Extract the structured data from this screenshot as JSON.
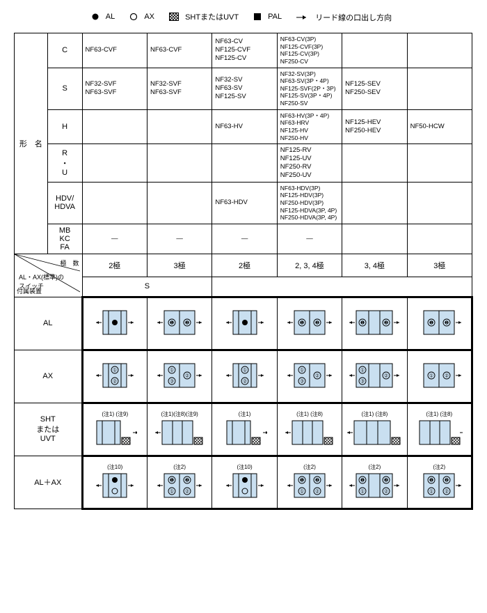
{
  "legend": {
    "al": "AL",
    "ax": "AX",
    "sht_uvt": "SHTまたはUVT",
    "pal": "PAL",
    "lead": "リード線の口出し方向"
  },
  "top_header": {
    "model_name": "形　名"
  },
  "type_rows": {
    "C": {
      "label": "C",
      "cols": [
        "NF63-CVF",
        "NF63-CVF",
        "NF63-CV\nNF125-CVF\nNF125-CV",
        "NF63-CV(3P)\nNF125-CVF(3P)\nNF125-CV(3P)\nNF250-CV",
        "",
        ""
      ]
    },
    "S": {
      "label": "S",
      "cols": [
        "NF32-SVF\nNF63-SVF",
        "NF32-SVF\nNF63-SVF",
        "NF32-SV\nNF63-SV\nNF125-SV",
        "NF32-SV(3P)\nNF63-SV(3P・4P)\nNF125-SVF(2P・3P)\nNF125-SV(3P・4P)\nNF250-SV",
        "NF125-SEV\nNF250-SEV",
        ""
      ]
    },
    "H": {
      "label": "H",
      "cols": [
        "",
        "",
        "NF63-HV",
        "NF63-HV(3P・4P)\nNF63-HRV\nNF125-HV\nNF250-HV",
        "NF125-HEV\nNF250-HEV",
        "NF50-HCW"
      ]
    },
    "RU": {
      "label": "R\n・\nU",
      "cols": [
        "",
        "",
        "",
        "NF125-RV\nNF125-UV\nNF250-RV\nNF250-UV",
        "",
        ""
      ]
    },
    "HDV": {
      "label": "HDV/\nHDVA",
      "cols": [
        "",
        "",
        "NF63-HDV",
        "NF63-HDV(3P)\nNF125-HDV(3P)\nNF250-HDV(3P)\nNF125-HDVA(3P, 4P)\nNF250-HDVA(3P, 4P)",
        "",
        ""
      ]
    },
    "MB": {
      "label": "MB\nKC\nFA",
      "cols": [
        "—",
        "—",
        "—",
        "—",
        "",
        ""
      ]
    }
  },
  "pole_row": {
    "cols": [
      "2極",
      "3極",
      "2極",
      "2, 3, 4極",
      "3, 4極",
      "3極"
    ]
  },
  "switch_row": {
    "value": "S"
  },
  "diag_headers": {
    "pole": "極　数",
    "switch": "AL・AX(標準)の\nスイッチ",
    "attach": "付属装置"
  },
  "device_rows": {
    "AL": {
      "label": "AL"
    },
    "AX": {
      "label": "AX"
    },
    "SHT": {
      "label": "SHT\nまたは\nUVT"
    },
    "ALAX": {
      "label": "AL＋AX"
    }
  },
  "notes": {
    "n1": "(注1)",
    "n2": "(注2)",
    "n8": "(注8)",
    "n9": "(注9)",
    "n10": "(注10)",
    "n1_9": "(注1) (注9)",
    "n1_8_9": "(注1)(注8)(注9)",
    "n1_8": "(注1) (注8)"
  },
  "colors": {
    "module_fill": "#c9dff0",
    "module_stroke": "#000000",
    "hatch": "#000000"
  }
}
